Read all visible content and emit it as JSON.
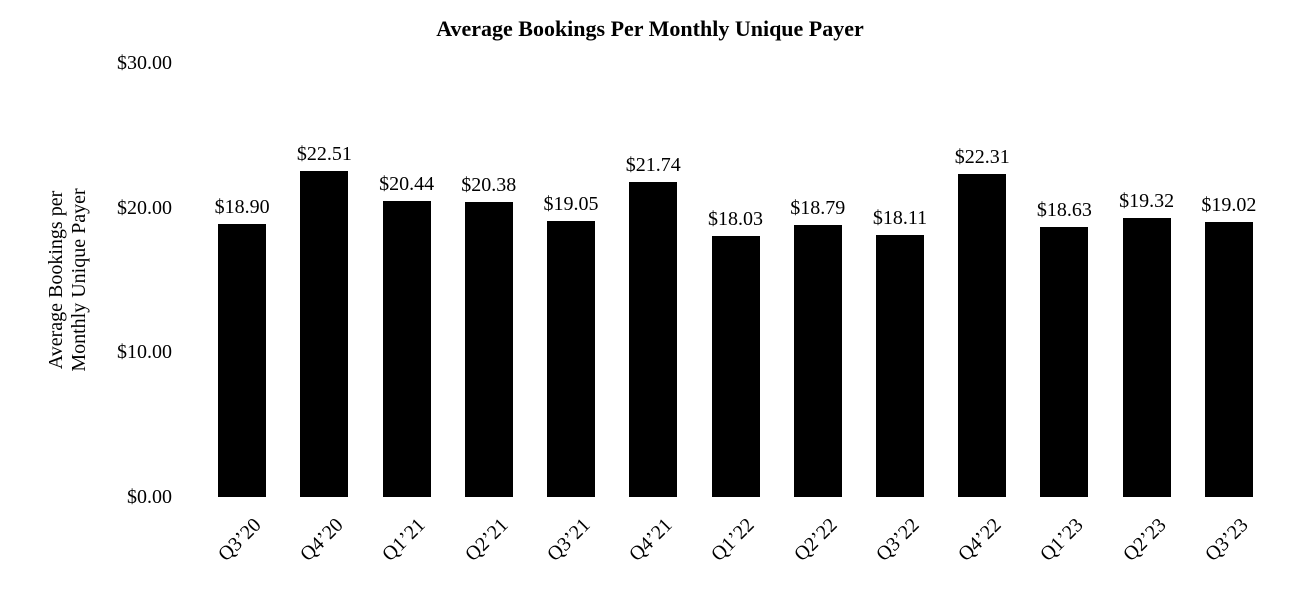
{
  "chart_data": {
    "type": "bar",
    "title": "Average Bookings Per Monthly Unique Payer",
    "ylabel": "Average Bookings per Monthly Unique Payer",
    "ylabel_lines": [
      "Average Bookings per",
      "Monthly Unique Payer"
    ],
    "xlabel": "",
    "categories": [
      "Q3’20",
      "Q4’20",
      "Q1’21",
      "Q2’21",
      "Q3’21",
      "Q4’21",
      "Q1’22",
      "Q2’22",
      "Q3’22",
      "Q4’22",
      "Q1’23",
      "Q2’23",
      "Q3’23"
    ],
    "values": [
      18.9,
      22.51,
      20.44,
      20.38,
      19.05,
      21.74,
      18.03,
      18.79,
      18.11,
      22.31,
      18.63,
      19.32,
      19.02
    ],
    "data_labels": [
      "$18.90",
      "$22.51",
      "$20.44",
      "$20.38",
      "$19.05",
      "$21.74",
      "$18.03",
      "$18.79",
      "$18.11",
      "$22.31",
      "$18.63",
      "$19.32",
      "$19.02"
    ],
    "y_ticks": [
      "$30.00",
      "$20.00",
      "$10.00",
      "$0.00"
    ],
    "y_tick_values": [
      30,
      20,
      10,
      0
    ],
    "ylim": [
      0,
      30
    ],
    "grid": false,
    "legend": "none",
    "bar_color": "#000000",
    "text_color": "#000000",
    "background_color": "#ffffff"
  }
}
